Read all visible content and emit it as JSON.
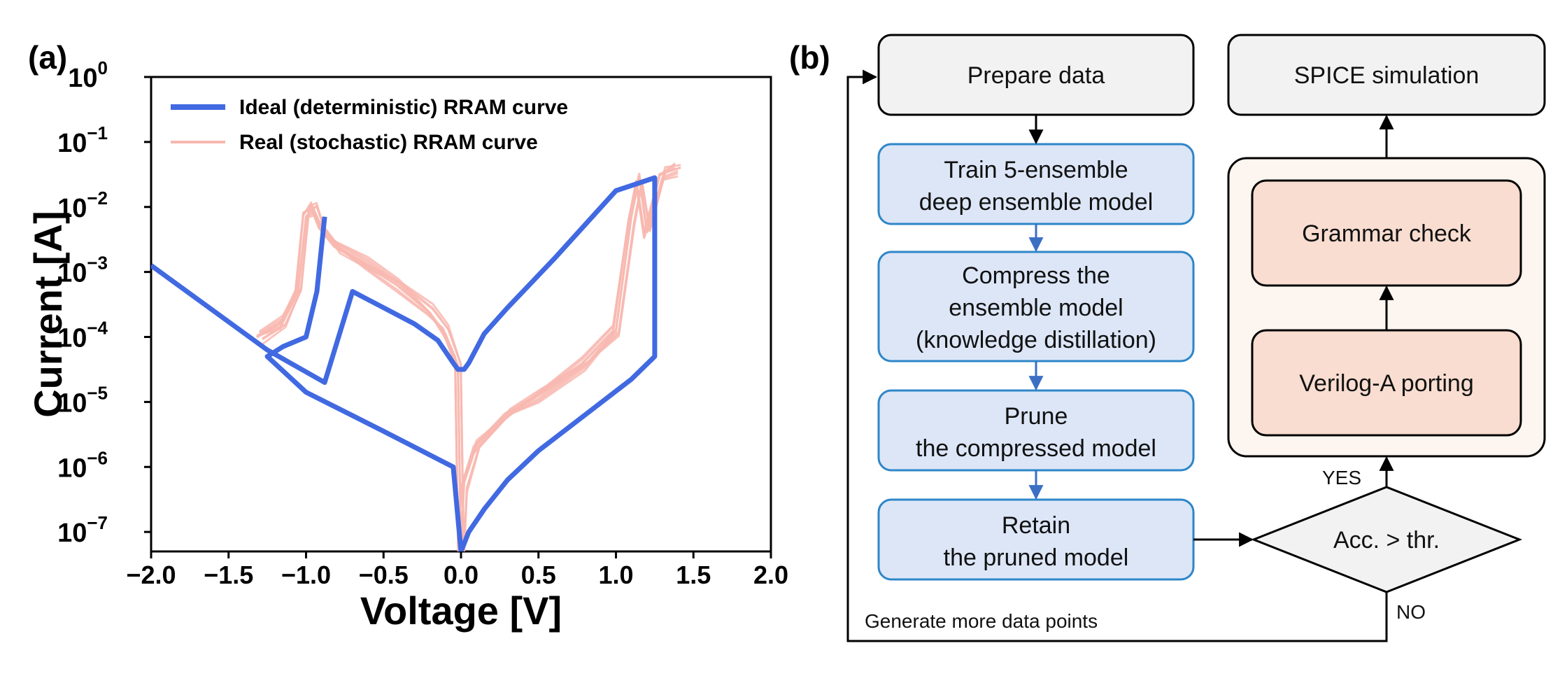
{
  "panel_a": {
    "label": "(a)",
    "chart_data": {
      "type": "line",
      "xlabel": "Voltage [V]",
      "ylabel": "Current [A]",
      "xlim": [
        -2.0,
        2.0
      ],
      "ylim_log10": [
        -7.3,
        0
      ],
      "y_scale": "log",
      "x_ticks": [
        "−2.0",
        "−1.5",
        "−1.0",
        "−0.5",
        "0.0",
        "0.5",
        "1.0",
        "1.5",
        "2.0"
      ],
      "x_tick_values": [
        -2.0,
        -1.5,
        -1.0,
        -0.5,
        0.0,
        0.5,
        1.0,
        1.5,
        2.0
      ],
      "y_tick_exponents": [
        "0",
        "−1",
        "−2",
        "−3",
        "−4",
        "−5",
        "−6",
        "−7"
      ],
      "y_tick_base": "10",
      "legend_position": "upper-left",
      "series": [
        {
          "name": "Ideal (deterministic) RRAM curve",
          "color": "#4169e1",
          "x": [
            -2.0,
            -1.25,
            -0.88,
            -0.7,
            -0.5,
            -0.3,
            -0.15,
            -0.05,
            -0.02,
            0.0,
            0.02,
            0.05,
            0.15,
            0.3,
            0.6,
            1.0,
            1.25,
            1.25,
            1.1,
            0.8,
            0.5,
            0.3,
            0.15,
            0.05,
            0.0,
            -0.05,
            -0.5,
            -1.0,
            -1.25,
            -1.15,
            -1.0,
            -0.93,
            -0.88
          ],
          "log10_y": [
            -2.9,
            -4.2,
            -4.7,
            -3.3,
            -3.55,
            -3.8,
            -4.05,
            -4.4,
            -4.5,
            -4.5,
            -4.5,
            -4.4,
            -3.95,
            -3.55,
            -2.8,
            -1.75,
            -1.55,
            -4.3,
            -4.65,
            -5.2,
            -5.75,
            -6.2,
            -6.65,
            -7.0,
            -7.3,
            -6.0,
            -5.45,
            -4.85,
            -4.3,
            -4.15,
            -4.0,
            -3.3,
            -2.15
          ]
        },
        {
          "name": "Real (stochastic) RRAM curve",
          "color": "#f8b8b0",
          "x": [
            -1.3,
            -1.15,
            -1.05,
            -1.0,
            -0.95,
            -0.9,
            -0.8,
            -0.6,
            -0.4,
            -0.2,
            -0.1,
            -0.02,
            0.0,
            0.02,
            0.1,
            0.3,
            0.5,
            0.8,
            1.0,
            1.1,
            1.15,
            1.2,
            1.3,
            1.4
          ],
          "log10_y": [
            -4.0,
            -3.8,
            -3.3,
            -2.1,
            -2.0,
            -2.3,
            -2.6,
            -2.9,
            -3.2,
            -3.6,
            -3.9,
            -4.4,
            -7.3,
            -6.3,
            -5.7,
            -5.2,
            -4.9,
            -4.4,
            -3.9,
            -2.2,
            -1.6,
            -2.4,
            -1.5,
            -1.4
          ]
        }
      ]
    }
  },
  "panel_b": {
    "label": "(b)",
    "boxes": {
      "prepare": "Prepare data",
      "train": [
        "Train 5-ensemble",
        "deep ensemble model"
      ],
      "compress": [
        "Compress the",
        "ensemble model",
        "(knowledge distillation)"
      ],
      "prune": [
        "Prune",
        "the compressed model"
      ],
      "retain": [
        "Retain",
        "the pruned model"
      ],
      "decision": "Acc. > thr.",
      "verilog": "Verilog-A porting",
      "grammar": "Grammar check",
      "spice": "SPICE simulation"
    },
    "labels": {
      "yes": "YES",
      "no": "NO",
      "loop": "Generate more data points"
    },
    "colors": {
      "gray_fill": "#f2f2f2",
      "blue_fill": "#dce6f7",
      "blue_border": "#2e86c8",
      "orange_fill": "#f8ddd0",
      "orange_container": "#fdf5ef",
      "line": "#000000",
      "blue_arrow": "#3a6fc4"
    }
  }
}
